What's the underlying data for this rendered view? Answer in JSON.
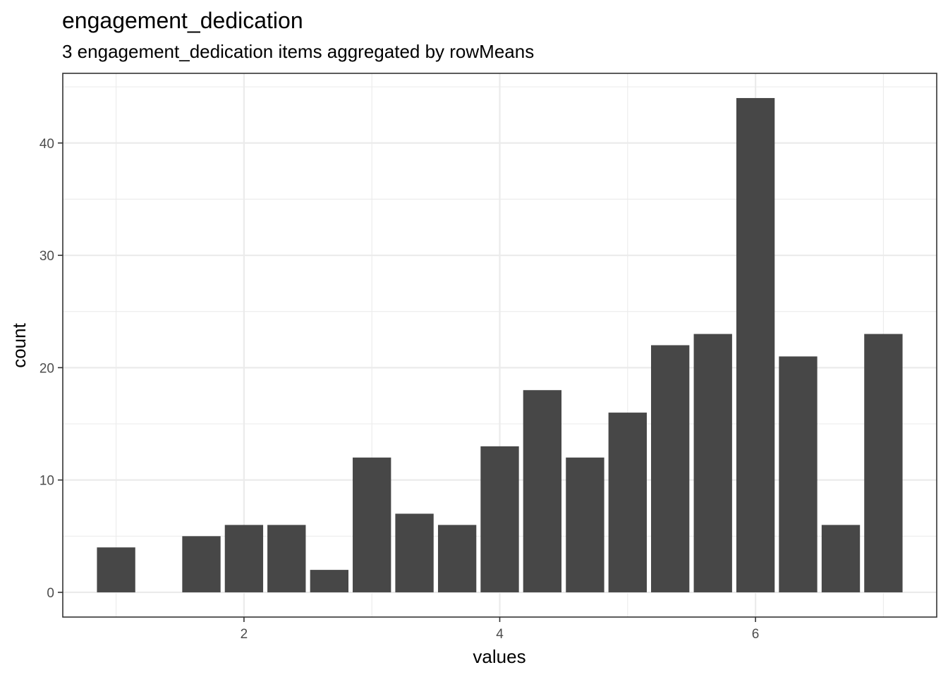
{
  "chart_data": {
    "type": "bar",
    "title": "engagement_dedication",
    "subtitle": "3 engagement_dedication items aggregated by rowMeans",
    "xlabel": "values",
    "ylabel": "count",
    "x": [
      1.0,
      1.333,
      1.667,
      2.0,
      2.333,
      2.667,
      3.0,
      3.333,
      3.667,
      4.0,
      4.333,
      4.667,
      5.0,
      5.333,
      5.667,
      6.0,
      6.333,
      6.667,
      7.0
    ],
    "values": [
      4,
      0,
      5,
      6,
      6,
      2,
      12,
      7,
      6,
      13,
      18,
      12,
      16,
      22,
      23,
      44,
      21,
      6,
      23
    ],
    "xticks": [
      2,
      4,
      6
    ],
    "yticks": [
      0,
      10,
      20,
      30,
      40
    ],
    "xlim": [
      0.583,
      7.417
    ],
    "ylim": [
      -2.2,
      46.2
    ],
    "grid": true,
    "bar_color": "#474747"
  }
}
